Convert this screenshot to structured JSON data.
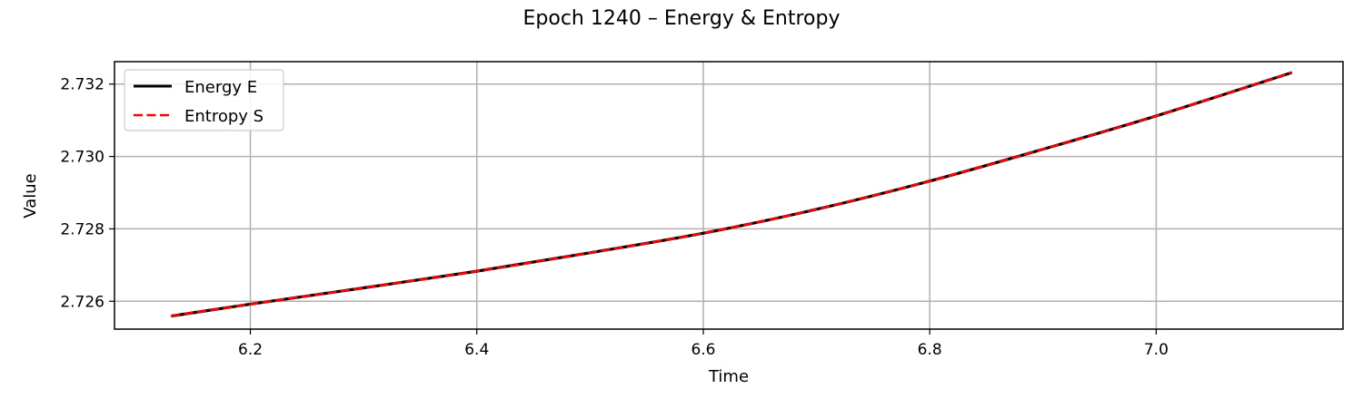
{
  "chart_data": {
    "type": "line",
    "title": "Epoch 1240 – Energy & Entropy",
    "xlabel": "Time",
    "ylabel": "Value",
    "xlim": [
      6.08,
      7.165
    ],
    "ylim": [
      2.72523,
      2.73262
    ],
    "xticks": [
      6.2,
      6.4,
      6.6,
      6.8,
      7.0
    ],
    "xtick_labels": [
      "6.2",
      "6.4",
      "6.6",
      "6.8",
      "7.0"
    ],
    "yticks": [
      2.726,
      2.728,
      2.73,
      2.732
    ],
    "ytick_labels": [
      "2.726",
      "2.728",
      "2.730",
      "2.732"
    ],
    "grid": true,
    "legend_position": "top-left",
    "x": [
      6.13,
      6.2,
      6.3,
      6.4,
      6.5,
      6.6,
      6.7,
      6.8,
      6.9,
      7.0,
      7.12
    ],
    "series": [
      {
        "name": "Energy E",
        "color": "#000000",
        "style": "solid",
        "values": [
          2.72559,
          2.72592,
          2.72637,
          2.72683,
          2.72734,
          2.72788,
          2.72854,
          2.72932,
          2.7302,
          2.73112,
          2.73232
        ]
      },
      {
        "name": "Entropy S",
        "color": "#ff0000",
        "style": "dashed",
        "values": [
          2.72559,
          2.72592,
          2.72637,
          2.72683,
          2.72734,
          2.72788,
          2.72854,
          2.72932,
          2.7302,
          2.73112,
          2.73232
        ]
      }
    ]
  }
}
